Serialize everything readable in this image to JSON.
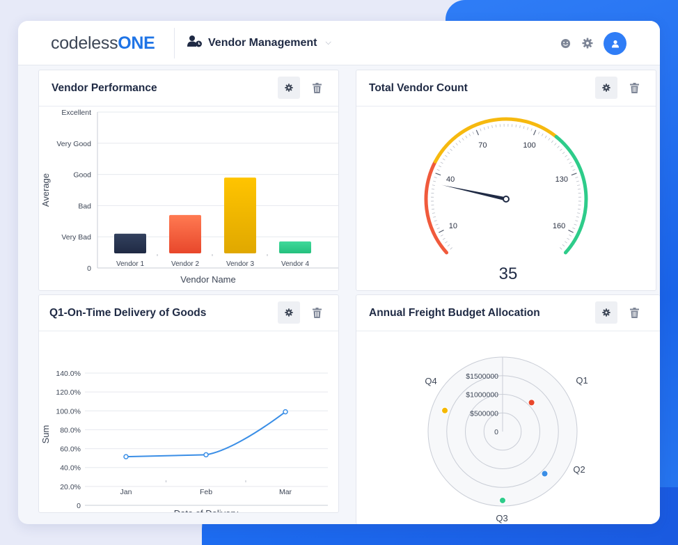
{
  "app": {
    "logo_part1": "codeless",
    "logo_part2": "ONE",
    "module_title": "Vendor Management"
  },
  "topbar_icons": [
    "smiley-icon",
    "gear-icon",
    "user-icon"
  ],
  "colors": {
    "accent": "#2f7df6",
    "navy": "#1f2a44",
    "red": "#e8472b",
    "orange": "#ff6e4a",
    "yellow": "#f5b800",
    "green": "#2ecc8a",
    "blue": "#3a8ee6"
  },
  "cards": {
    "vendor_performance": {
      "title": "Vendor Performance"
    },
    "total_vendor_count": {
      "title": "Total Vendor Count"
    },
    "on_time_delivery": {
      "title": "Q1-On-Time Delivery of Goods"
    },
    "freight_budget": {
      "title": "Annual Freight Budget Allocation"
    }
  },
  "chart_data": [
    {
      "id": "vendor_performance",
      "type": "bar",
      "categories": [
        "Vendor 1",
        "Vendor 2",
        "Vendor 3",
        "Vendor 4"
      ],
      "values": [
        1.1,
        1.7,
        2.9,
        0.85
      ],
      "xlabel": "Vendor Name",
      "ylabel": "Average",
      "ylim": [
        0,
        5
      ],
      "y_tick_labels": [
        "0",
        "Very Bad",
        "Bad",
        "Good",
        "Very Good",
        "Excellent"
      ],
      "bar_colors": [
        [
          "#33415e",
          "#1f2a44"
        ],
        [
          "#ff7a52",
          "#e8472b"
        ],
        [
          "#ffc400",
          "#e0a800"
        ],
        [
          "#3fd99a",
          "#25c07e"
        ]
      ],
      "grid": true
    },
    {
      "id": "total_vendor_count",
      "type": "gauge",
      "value": 35,
      "value_label": "35",
      "min": 0,
      "max": 170,
      "tick_labels": [
        10,
        40,
        70,
        100,
        130,
        160
      ],
      "bands": [
        {
          "from": 0,
          "to": 45,
          "color": "#f05a3c"
        },
        {
          "from": 45,
          "to": 110,
          "color": "#f6b90f"
        },
        {
          "from": 110,
          "to": 170,
          "color": "#2ecc8a"
        }
      ]
    },
    {
      "id": "on_time_delivery",
      "type": "line",
      "x": [
        "Jan",
        "Feb",
        "Mar"
      ],
      "series": [
        {
          "values": [
            51.5,
            53.5,
            99
          ]
        }
      ],
      "xlabel": "Date of Delivery",
      "ylabel": "Sum",
      "ylim": [
        0,
        140
      ],
      "y_tick_labels": [
        "0",
        "20.0%",
        "40.0%",
        "60.0%",
        "80.0%",
        "100.0%",
        "120.0%",
        "140.0%"
      ],
      "grid": true,
      "color": "#3a8ee6"
    },
    {
      "id": "freight_budget",
      "type": "polar-scatter",
      "categories": [
        "Q1",
        "Q2",
        "Q3",
        "Q4"
      ],
      "values": [
        1100000,
        1600000,
        1850000,
        1650000
      ],
      "point_colors": [
        "#e8472b",
        "#3a8ee6",
        "#2ecc8a",
        "#f5b800"
      ],
      "r_tick_labels": [
        "0",
        "$500000",
        "$1000000",
        "$1500000"
      ],
      "rlim": [
        0,
        2000000
      ]
    }
  ]
}
